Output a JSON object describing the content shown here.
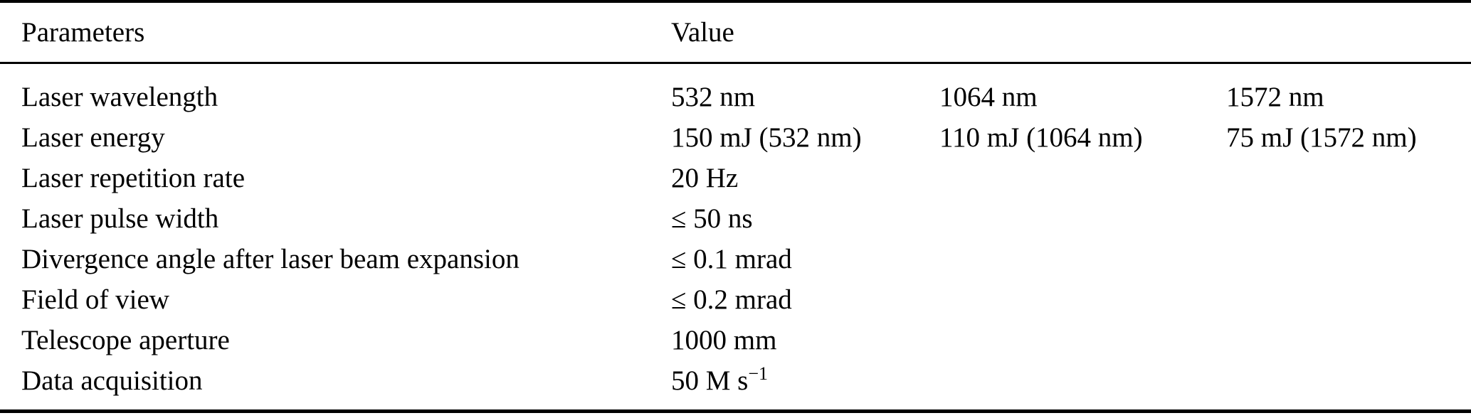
{
  "page": {
    "background_color": "#ffffff",
    "text_color": "#000000",
    "rule_color": "#000000"
  },
  "table": {
    "headers": [
      "Parameters",
      "Value"
    ],
    "rows": [
      {
        "param": "Laser wavelength",
        "values": [
          "532 nm",
          "1064 nm",
          "1572 nm"
        ]
      },
      {
        "param": "Laser energy",
        "values": [
          "150 mJ (532 nm)",
          "110 mJ (1064 nm)",
          "75 mJ (1572 nm)"
        ]
      },
      {
        "param": "Laser repetition rate",
        "values": [
          "20 Hz"
        ]
      },
      {
        "param": "Laser pulse width",
        "values": [
          "≤ 50 ns"
        ]
      },
      {
        "param": "Divergence angle after laser beam expansion",
        "values": [
          "≤ 0.1 mrad"
        ]
      },
      {
        "param": "Field of view",
        "values": [
          "≤ 0.2 mrad"
        ]
      },
      {
        "param": "Telescope aperture",
        "values": [
          "1000 mm"
        ]
      },
      {
        "param": "Data acquisition",
        "values": [
          {
            "text": "50 M s",
            "sup": "−1"
          }
        ]
      }
    ]
  }
}
